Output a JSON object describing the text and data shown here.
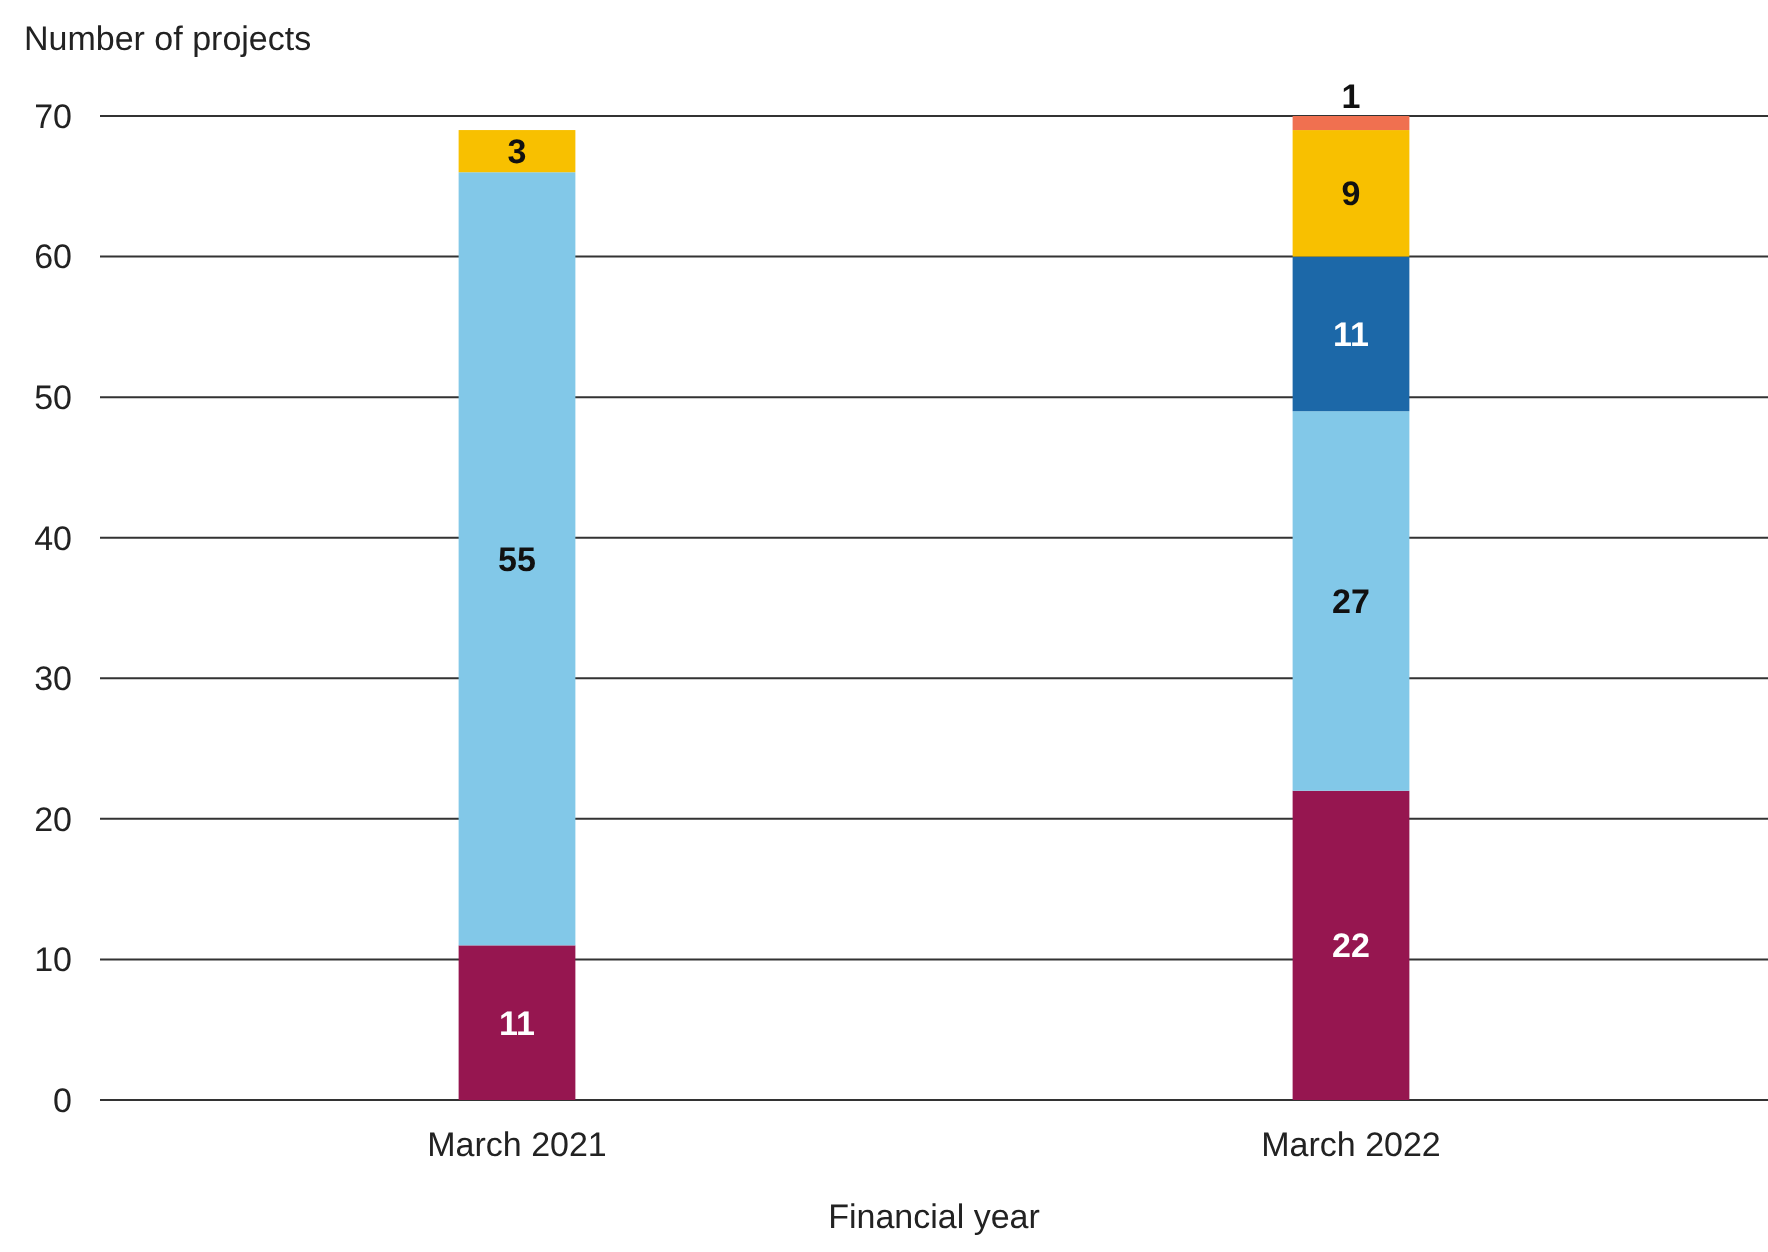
{
  "chart_data": {
    "type": "bar",
    "stacked": true,
    "ylabel": "Number of projects",
    "xlabel": "Financial year",
    "categories": [
      "March 2021",
      "March 2022"
    ],
    "series": [
      {
        "color": "#961650",
        "values": [
          11,
          22
        ]
      },
      {
        "color": "#82c8e8",
        "values": [
          55,
          27
        ]
      },
      {
        "color": "#1c68a8",
        "values": [
          null,
          11
        ]
      },
      {
        "color": "#f8c000",
        "values": [
          3,
          9
        ]
      },
      {
        "color": "#f07050",
        "values": [
          null,
          1
        ]
      }
    ],
    "ylim": [
      0,
      70
    ],
    "yticks": [
      0,
      10,
      20,
      30,
      40,
      50,
      60,
      70
    ],
    "grid": "y",
    "data_labels": true
  }
}
